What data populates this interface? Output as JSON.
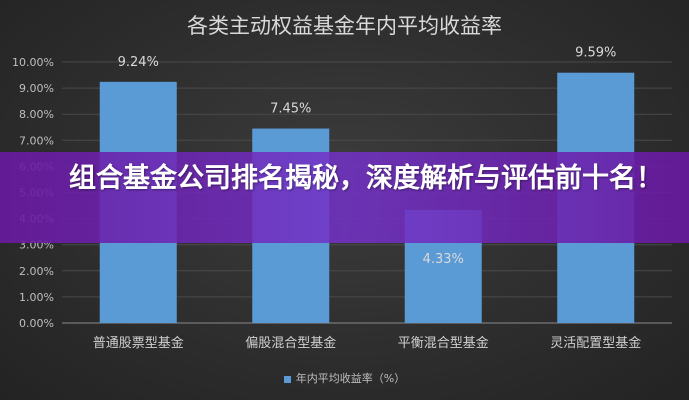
{
  "banner": {
    "headline": "组合基金公司排名揭秘，深度解析与评估前十名！"
  },
  "chart_data": {
    "type": "bar",
    "title": "各类主动权益基金年内平均收益率",
    "categories": [
      "普通股票型基金",
      "偏股混合型基金",
      "平衡混合型基金",
      "灵活配置型基金"
    ],
    "series": [
      {
        "name": "年内平均收益率（%）",
        "values": [
          9.24,
          7.45,
          4.33,
          9.59
        ],
        "labels": [
          "9.24%",
          "7.45%",
          "4.33%",
          "9.59%"
        ]
      }
    ],
    "ylim": [
      0,
      10
    ],
    "yticks": [
      "0.00%",
      "1.00%",
      "2.00%",
      "3.00%",
      "4.00%",
      "5.00%",
      "6.00%",
      "7.00%",
      "8.00%",
      "9.00%",
      "10.00%"
    ],
    "grid": true,
    "legend": "bottom",
    "bar_color": "#5b9bd5"
  }
}
